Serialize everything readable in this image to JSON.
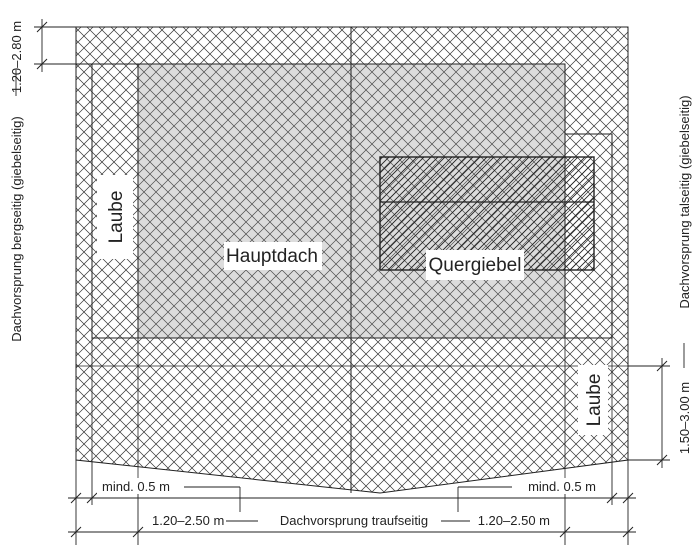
{
  "labels": {
    "hauptdach": "Hauptdach",
    "quergiebel": "Quergiebel",
    "laube_left": "Laube",
    "laube_right": "Laube"
  },
  "dimensions": {
    "top_overhang": "1.20–2.80 m",
    "left_side": "Dachvorsprung bergseitig (giebelseitig)",
    "right_side": "Dachvorsprung talseitig (giebelseitig)",
    "right_overhang": "1.50–3.00 m",
    "min_left": "mind. 0.5 m",
    "min_right": "mind. 0.5 m",
    "eaves_left": "1.20–2.50 m",
    "eaves_center": "Dachvorsprung traufseitig",
    "eaves_right": "1.20–2.50 m"
  },
  "colors": {
    "line": "#222222",
    "hatch": "#333333",
    "main_roof_fill": "#dcdcdc"
  }
}
